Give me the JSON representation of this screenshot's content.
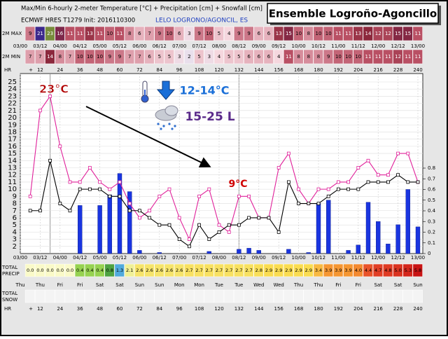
{
  "chart_data": {
    "type": "meteogram",
    "title": "Max/Min 6-hourly 2-meter Temperature [°C] + Precipitation [cm] + Snowfall [cm]",
    "subtitle": "ECMWF HRES T1279 Init: 2016110300",
    "station": "LELO LOGRONO/AGONCIL, ES",
    "box_title": "Ensemble Logroño-Agoncillo",
    "x": [
      6,
      12,
      18,
      24,
      30,
      36,
      42,
      48,
      54,
      60,
      66,
      72,
      78,
      84,
      90,
      96,
      102,
      108,
      114,
      120,
      126,
      132,
      138,
      144,
      150,
      156,
      162,
      168,
      174,
      180,
      186,
      192,
      198,
      204,
      210,
      216,
      222,
      228,
      234,
      240
    ],
    "xlim": [
      0,
      240
    ],
    "xticks": [
      {
        "value": 0,
        "label": "03/00"
      },
      {
        "value": 12,
        "label": "03/12"
      },
      {
        "value": 24,
        "label": "04/00"
      },
      {
        "value": 36,
        "label": "04/12"
      },
      {
        "value": 48,
        "label": "05/00"
      },
      {
        "value": 60,
        "label": "05/12"
      },
      {
        "value": 72,
        "label": "06/00"
      },
      {
        "value": 84,
        "label": "06/12"
      },
      {
        "value": 96,
        "label": "07/00"
      },
      {
        "value": 108,
        "label": "07/12"
      },
      {
        "value": 120,
        "label": "08/00"
      },
      {
        "value": 132,
        "label": "08/12"
      },
      {
        "value": 144,
        "label": "09/00"
      },
      {
        "value": 156,
        "label": "09/12"
      },
      {
        "value": 168,
        "label": "10/00"
      },
      {
        "value": 180,
        "label": "10/12"
      },
      {
        "value": 192,
        "label": "11/00"
      },
      {
        "value": 204,
        "label": "11/12"
      },
      {
        "value": 216,
        "label": "12/00"
      },
      {
        "value": 228,
        "label": "12/12"
      },
      {
        "value": 240,
        "label": "13/00"
      }
    ],
    "days": [
      "Thu",
      "Thu",
      "Fri",
      "Fri",
      "Sat",
      "Sat",
      "Sun",
      "Sun",
      "Mon",
      "Mon",
      "Tue",
      "Tue",
      "Wed",
      "Wed",
      "Thu",
      "Thu",
      "Fri",
      "Fri",
      "Sat",
      "Sat",
      "Sun"
    ],
    "hr_label": "HR",
    "hr_ticks": [
      {
        "value": 0,
        "label": "+"
      },
      12,
      24,
      36,
      48,
      60,
      72,
      84,
      96,
      108,
      120,
      132,
      144,
      156,
      168,
      180,
      192,
      204,
      216,
      228,
      240
    ],
    "ylim": [
      1,
      25
    ],
    "yticks": [
      2,
      3,
      4,
      5,
      6,
      7,
      8,
      9,
      10,
      11,
      12,
      13,
      14,
      15,
      16,
      17,
      18,
      19,
      20,
      21,
      22,
      23,
      24,
      25
    ],
    "y2lim": [
      0,
      0.8
    ],
    "y2ticks": [
      0,
      0.1,
      0.2,
      0.3,
      0.4,
      0.5,
      0.6,
      0.7,
      0.8
    ],
    "grid": true,
    "series": [
      {
        "name": "2M MAX",
        "color": "#e0209a",
        "values": [
          9,
          21,
          23,
          16,
          11,
          11,
          13,
          11,
          10,
          11,
          8,
          6,
          7,
          9,
          10,
          6,
          3,
          9,
          10,
          5,
          4,
          9,
          9,
          6,
          6,
          13,
          15,
          10,
          8,
          10,
          10,
          11,
          11,
          13,
          14,
          12,
          12,
          15,
          15,
          11
        ]
      },
      {
        "name": "2M MIN",
        "color": "#000000",
        "values": [
          7,
          7,
          14,
          8,
          7,
          10,
          10,
          10,
          9,
          9,
          7,
          7,
          6,
          5,
          5,
          3,
          2,
          5,
          3,
          4,
          5,
          5,
          6,
          6,
          6,
          4,
          11,
          8,
          8,
          8,
          9,
          10,
          10,
          10,
          11,
          11,
          11,
          12,
          11,
          11
        ]
      },
      {
        "axis": "y2",
        "color": "#1a35e0",
        "values": [
          0,
          0,
          0,
          0,
          0,
          0.45,
          0,
          0.45,
          0.55,
          0.75,
          0.58,
          0.03,
          0,
          0.01,
          0,
          0,
          0,
          0,
          0.02,
          0,
          0,
          0.04,
          0.05,
          0.03,
          0,
          0,
          0.04,
          0,
          0.01,
          0.47,
          0.5,
          0,
          0.03,
          0.08,
          0.48,
          0.3,
          0.09,
          0.27,
          0.6,
          0.25
        ]
      }
    ],
    "total_precip": {
      "label": [
        "TOTAL",
        "PRECIP"
      ],
      "values": [
        "0.0",
        "0.0",
        "0.0",
        "0.0",
        "0.0",
        "0.4",
        "0.4",
        "0.4",
        "0.8",
        "1.3",
        "2.1",
        "2.6",
        "2.6",
        "2.6",
        "2.6",
        "2.6",
        "2.7",
        "2.7",
        "2.7",
        "2.7",
        "2.7",
        "2.7",
        "2.7",
        "2.8",
        "2.9",
        "2.9",
        "2.9",
        "2.9",
        "2.9",
        "3.4",
        "3.9",
        "3.9",
        "3.9",
        "4.0",
        "4.4",
        "4.7",
        "4.8",
        "5.0",
        "5.3",
        "5.8"
      ]
    },
    "total_snow": {
      "label": [
        "TOTAL",
        "SNOW"
      ]
    },
    "annotations": [
      "23°C",
      "12-14°C",
      "15-25 L",
      "9°C"
    ]
  }
}
